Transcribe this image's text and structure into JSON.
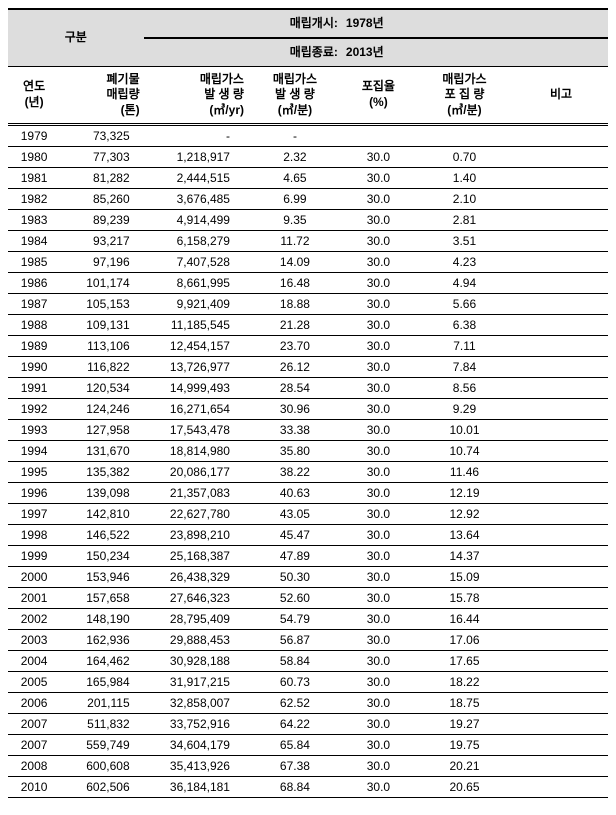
{
  "header": {
    "category_label": "구분",
    "start_label": "매립개시:",
    "start_value": "1978년",
    "end_label": "매립종료:",
    "end_value": "2013년",
    "col_year": "연도\n(년)",
    "col_waste": "폐기물\n매립량\n(톤)",
    "col_genyr": "매립가스\n발 생 량\n(㎥/yr)",
    "col_genmin": "매립가스\n발 생 량\n(㎥/분)",
    "col_rate": "포집율\n(%)",
    "col_collect": "매립가스\n포 집 량\n(㎥/분)",
    "col_remark": "비고"
  },
  "rows": [
    {
      "year": "1979",
      "waste": "73,325",
      "genyr": "-",
      "genmin": "-",
      "rate": "",
      "collect": "",
      "remark": ""
    },
    {
      "year": "1980",
      "waste": "77,303",
      "genyr": "1,218,917",
      "genmin": "2.32",
      "rate": "30.0",
      "collect": "0.70",
      "remark": ""
    },
    {
      "year": "1981",
      "waste": "81,282",
      "genyr": "2,444,515",
      "genmin": "4.65",
      "rate": "30.0",
      "collect": "1.40",
      "remark": ""
    },
    {
      "year": "1982",
      "waste": "85,260",
      "genyr": "3,676,485",
      "genmin": "6.99",
      "rate": "30.0",
      "collect": "2.10",
      "remark": ""
    },
    {
      "year": "1983",
      "waste": "89,239",
      "genyr": "4,914,499",
      "genmin": "9.35",
      "rate": "30.0",
      "collect": "2.81",
      "remark": ""
    },
    {
      "year": "1984",
      "waste": "93,217",
      "genyr": "6,158,279",
      "genmin": "11.72",
      "rate": "30.0",
      "collect": "3.51",
      "remark": ""
    },
    {
      "year": "1985",
      "waste": "97,196",
      "genyr": "7,407,528",
      "genmin": "14.09",
      "rate": "30.0",
      "collect": "4.23",
      "remark": ""
    },
    {
      "year": "1986",
      "waste": "101,174",
      "genyr": "8,661,995",
      "genmin": "16.48",
      "rate": "30.0",
      "collect": "4.94",
      "remark": ""
    },
    {
      "year": "1987",
      "waste": "105,153",
      "genyr": "9,921,409",
      "genmin": "18.88",
      "rate": "30.0",
      "collect": "5.66",
      "remark": ""
    },
    {
      "year": "1988",
      "waste": "109,131",
      "genyr": "11,185,545",
      "genmin": "21.28",
      "rate": "30.0",
      "collect": "6.38",
      "remark": ""
    },
    {
      "year": "1989",
      "waste": "113,106",
      "genyr": "12,454,157",
      "genmin": "23.70",
      "rate": "30.0",
      "collect": "7.11",
      "remark": ""
    },
    {
      "year": "1990",
      "waste": "116,822",
      "genyr": "13,726,977",
      "genmin": "26.12",
      "rate": "30.0",
      "collect": "7.84",
      "remark": ""
    },
    {
      "year": "1991",
      "waste": "120,534",
      "genyr": "14,999,493",
      "genmin": "28.54",
      "rate": "30.0",
      "collect": "8.56",
      "remark": ""
    },
    {
      "year": "1992",
      "waste": "124,246",
      "genyr": "16,271,654",
      "genmin": "30.96",
      "rate": "30.0",
      "collect": "9.29",
      "remark": ""
    },
    {
      "year": "1993",
      "waste": "127,958",
      "genyr": "17,543,478",
      "genmin": "33.38",
      "rate": "30.0",
      "collect": "10.01",
      "remark": ""
    },
    {
      "year": "1994",
      "waste": "131,670",
      "genyr": "18,814,980",
      "genmin": "35.80",
      "rate": "30.0",
      "collect": "10.74",
      "remark": ""
    },
    {
      "year": "1995",
      "waste": "135,382",
      "genyr": "20,086,177",
      "genmin": "38.22",
      "rate": "30.0",
      "collect": "11.46",
      "remark": ""
    },
    {
      "year": "1996",
      "waste": "139,098",
      "genyr": "21,357,083",
      "genmin": "40.63",
      "rate": "30.0",
      "collect": "12.19",
      "remark": ""
    },
    {
      "year": "1997",
      "waste": "142,810",
      "genyr": "22,627,780",
      "genmin": "43.05",
      "rate": "30.0",
      "collect": "12.92",
      "remark": ""
    },
    {
      "year": "1998",
      "waste": "146,522",
      "genyr": "23,898,210",
      "genmin": "45.47",
      "rate": "30.0",
      "collect": "13.64",
      "remark": ""
    },
    {
      "year": "1999",
      "waste": "150,234",
      "genyr": "25,168,387",
      "genmin": "47.89",
      "rate": "30.0",
      "collect": "14.37",
      "remark": ""
    },
    {
      "year": "2000",
      "waste": "153,946",
      "genyr": "26,438,329",
      "genmin": "50.30",
      "rate": "30.0",
      "collect": "15.09",
      "remark": ""
    },
    {
      "year": "2001",
      "waste": "157,658",
      "genyr": "27,646,323",
      "genmin": "52.60",
      "rate": "30.0",
      "collect": "15.78",
      "remark": ""
    },
    {
      "year": "2002",
      "waste": "148,190",
      "genyr": "28,795,409",
      "genmin": "54.79",
      "rate": "30.0",
      "collect": "16.44",
      "remark": ""
    },
    {
      "year": "2003",
      "waste": "162,936",
      "genyr": "29,888,453",
      "genmin": "56.87",
      "rate": "30.0",
      "collect": "17.06",
      "remark": ""
    },
    {
      "year": "2004",
      "waste": "164,462",
      "genyr": "30,928,188",
      "genmin": "58.84",
      "rate": "30.0",
      "collect": "17.65",
      "remark": ""
    },
    {
      "year": "2005",
      "waste": "165,984",
      "genyr": "31,917,215",
      "genmin": "60.73",
      "rate": "30.0",
      "collect": "18.22",
      "remark": ""
    },
    {
      "year": "2006",
      "waste": "201,115",
      "genyr": "32,858,007",
      "genmin": "62.52",
      "rate": "30.0",
      "collect": "18.75",
      "remark": ""
    },
    {
      "year": "2007",
      "waste": "511,832",
      "genyr": "33,752,916",
      "genmin": "64.22",
      "rate": "30.0",
      "collect": "19.27",
      "remark": ""
    },
    {
      "year": "2007",
      "waste": "559,749",
      "genyr": "34,604,179",
      "genmin": "65.84",
      "rate": "30.0",
      "collect": "19.75",
      "remark": ""
    },
    {
      "year": "2008",
      "waste": "600,608",
      "genyr": "35,413,926",
      "genmin": "67.38",
      "rate": "30.0",
      "collect": "20.21",
      "remark": ""
    },
    {
      "year": "2010",
      "waste": "602,506",
      "genyr": "36,184,181",
      "genmin": "68.84",
      "rate": "30.0",
      "collect": "20.65",
      "remark": ""
    }
  ],
  "styling": {
    "header_bg": "#dddddd",
    "border_color": "#000000",
    "body_bg": "#ffffff",
    "font_size_header": 12,
    "font_size_body": 12,
    "col_widths": {
      "year": 50,
      "waste": 80,
      "genyr": 100,
      "genmin": 90,
      "rate": 70,
      "collect": 95,
      "remark": 90
    }
  }
}
